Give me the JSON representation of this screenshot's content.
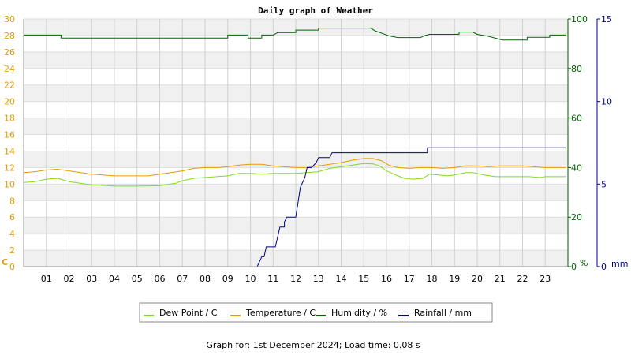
{
  "chart_data": {
    "type": "line",
    "title": "Daily graph of Weather",
    "footer": "Graph for: 1st December 2024; Load time: 0.08 s",
    "x_tick_labels": [
      "01",
      "02",
      "03",
      "04",
      "05",
      "06",
      "07",
      "08",
      "09",
      "10",
      "11",
      "12",
      "13",
      "14",
      "15",
      "16",
      "17",
      "18",
      "19",
      "20",
      "21",
      "22",
      "23"
    ],
    "x_range": [
      0,
      24
    ],
    "axes": {
      "left": {
        "unit_label": "C",
        "ylim": [
          0,
          30
        ],
        "ticks": [
          0,
          2,
          4,
          6,
          8,
          10,
          12,
          14,
          16,
          18,
          20,
          22,
          24,
          26,
          28,
          30
        ],
        "color": "#e69b00"
      },
      "right_humidity": {
        "unit_label": "%",
        "ylim": [
          0,
          100
        ],
        "ticks": [
          0,
          20,
          40,
          60,
          80,
          100
        ],
        "color": "#006400"
      },
      "right_rainfall": {
        "unit_label": "mm",
        "ylim": [
          0,
          15
        ],
        "ticks": [
          0,
          5,
          10,
          15
        ],
        "color": "#00008b"
      }
    },
    "grid": true,
    "legend_position": "bottom",
    "series": [
      {
        "name": "Dew Point / C",
        "axis": "left",
        "color": "#7ddc1f",
        "step": false,
        "points": [
          [
            0,
            10.2
          ],
          [
            0.5,
            10.3
          ],
          [
            1.0,
            10.6
          ],
          [
            1.5,
            10.7
          ],
          [
            2.0,
            10.3
          ],
          [
            2.5,
            10.1
          ],
          [
            3.0,
            9.9
          ],
          [
            3.5,
            9.85
          ],
          [
            4.0,
            9.75
          ],
          [
            5.0,
            9.75
          ],
          [
            6.0,
            9.8
          ],
          [
            6.7,
            10.1
          ],
          [
            7.0,
            10.4
          ],
          [
            7.5,
            10.7
          ],
          [
            8.0,
            10.8
          ],
          [
            8.5,
            10.9
          ],
          [
            9.0,
            11.0
          ],
          [
            9.5,
            11.3
          ],
          [
            10.0,
            11.3
          ],
          [
            10.5,
            11.2
          ],
          [
            11.0,
            11.3
          ],
          [
            11.5,
            11.3
          ],
          [
            12.0,
            11.3
          ],
          [
            12.5,
            11.4
          ],
          [
            13.0,
            11.5
          ],
          [
            13.5,
            11.9
          ],
          [
            14.0,
            12.1
          ],
          [
            14.5,
            12.3
          ],
          [
            15.0,
            12.5
          ],
          [
            15.4,
            12.45
          ],
          [
            15.7,
            12.2
          ],
          [
            16.0,
            11.6
          ],
          [
            16.5,
            11.0
          ],
          [
            16.8,
            10.7
          ],
          [
            17.2,
            10.6
          ],
          [
            17.6,
            10.7
          ],
          [
            17.9,
            11.2
          ],
          [
            18.3,
            11.1
          ],
          [
            18.7,
            11.0
          ],
          [
            19.0,
            11.1
          ],
          [
            19.5,
            11.4
          ],
          [
            19.8,
            11.4
          ],
          [
            20.3,
            11.1
          ],
          [
            20.8,
            10.9
          ],
          [
            21.3,
            10.9
          ],
          [
            21.8,
            10.9
          ],
          [
            22.3,
            10.9
          ],
          [
            22.8,
            10.8
          ],
          [
            23.0,
            10.9
          ],
          [
            23.9,
            10.9
          ]
        ]
      },
      {
        "name": "Temperature / C",
        "axis": "left",
        "color": "#e69b00",
        "step": false,
        "points": [
          [
            0,
            11.4
          ],
          [
            0.5,
            11.5
          ],
          [
            1.0,
            11.7
          ],
          [
            1.5,
            11.8
          ],
          [
            2.0,
            11.6
          ],
          [
            2.5,
            11.4
          ],
          [
            3.0,
            11.2
          ],
          [
            3.5,
            11.1
          ],
          [
            4.0,
            11.0
          ],
          [
            5.0,
            11.0
          ],
          [
            5.5,
            11.0
          ],
          [
            6.0,
            11.2
          ],
          [
            6.5,
            11.4
          ],
          [
            7.0,
            11.6
          ],
          [
            7.5,
            11.9
          ],
          [
            8.0,
            12.0
          ],
          [
            8.5,
            12.0
          ],
          [
            9.0,
            12.1
          ],
          [
            9.5,
            12.3
          ],
          [
            10.0,
            12.4
          ],
          [
            10.5,
            12.4
          ],
          [
            11.0,
            12.2
          ],
          [
            11.5,
            12.1
          ],
          [
            12.0,
            12.0
          ],
          [
            12.5,
            12.0
          ],
          [
            13.0,
            12.2
          ],
          [
            13.5,
            12.4
          ],
          [
            14.0,
            12.6
          ],
          [
            14.5,
            12.9
          ],
          [
            15.0,
            13.1
          ],
          [
            15.4,
            13.1
          ],
          [
            15.8,
            12.8
          ],
          [
            16.1,
            12.3
          ],
          [
            16.5,
            12.0
          ],
          [
            17.0,
            11.9
          ],
          [
            17.5,
            12.0
          ],
          [
            18.0,
            12.0
          ],
          [
            18.5,
            11.9
          ],
          [
            19.0,
            12.0
          ],
          [
            19.5,
            12.2
          ],
          [
            20.0,
            12.2
          ],
          [
            20.5,
            12.1
          ],
          [
            21.0,
            12.2
          ],
          [
            22.0,
            12.2
          ],
          [
            22.5,
            12.1
          ],
          [
            23.0,
            12.0
          ],
          [
            23.9,
            12.0
          ]
        ]
      },
      {
        "name": "Humidity / %",
        "axis": "right_humidity",
        "color": "#006400",
        "step": true,
        "points": [
          [
            0,
            93.5
          ],
          [
            1.65,
            93.5
          ],
          [
            1.65,
            92.3
          ],
          [
            9.0,
            92.3
          ],
          [
            9.0,
            93.5
          ],
          [
            9.9,
            93.5
          ],
          [
            9.9,
            92.3
          ],
          [
            10.5,
            92.3
          ],
          [
            10.5,
            93.5
          ],
          [
            11.0,
            93.5
          ],
          [
            11.2,
            94.5
          ],
          [
            12.0,
            94.5
          ],
          [
            12.0,
            95.5
          ],
          [
            13.0,
            95.5
          ],
          [
            13.0,
            96.3
          ],
          [
            15.3,
            96.3
          ],
          [
            15.5,
            95.2
          ],
          [
            15.8,
            94.2
          ],
          [
            16.1,
            93.2
          ],
          [
            16.5,
            92.5
          ],
          [
            17.5,
            92.5
          ],
          [
            17.7,
            93.3
          ],
          [
            17.9,
            93.8
          ],
          [
            19.2,
            93.8
          ],
          [
            19.2,
            94.7
          ],
          [
            19.8,
            94.7
          ],
          [
            20.0,
            93.8
          ],
          [
            20.5,
            93.0
          ],
          [
            20.9,
            92.0
          ],
          [
            21.1,
            91.5
          ],
          [
            22.2,
            91.5
          ],
          [
            22.2,
            92.6
          ],
          [
            23.2,
            92.6
          ],
          [
            23.2,
            93.5
          ],
          [
            23.9,
            93.5
          ]
        ]
      },
      {
        "name": "Rainfall / mm",
        "axis": "right_rainfall",
        "color": "#00008b",
        "step": true,
        "points": [
          [
            0,
            0
          ],
          [
            10.3,
            0
          ],
          [
            10.4,
            0.3
          ],
          [
            10.5,
            0.6
          ],
          [
            10.6,
            0.6
          ],
          [
            10.7,
            1.2
          ],
          [
            11.1,
            1.2
          ],
          [
            11.2,
            1.8
          ],
          [
            11.3,
            2.4
          ],
          [
            11.5,
            2.4
          ],
          [
            11.5,
            2.7
          ],
          [
            11.6,
            3.0
          ],
          [
            12.0,
            3.0
          ],
          [
            12.1,
            3.9
          ],
          [
            12.2,
            4.8
          ],
          [
            12.4,
            5.4
          ],
          [
            12.5,
            6.0
          ],
          [
            12.7,
            6.0
          ],
          [
            12.9,
            6.3
          ],
          [
            13.0,
            6.6
          ],
          [
            13.5,
            6.6
          ],
          [
            13.6,
            6.9
          ],
          [
            14.0,
            6.9
          ],
          [
            17.8,
            6.9
          ],
          [
            17.8,
            7.2
          ],
          [
            23.9,
            7.2
          ]
        ]
      }
    ]
  }
}
